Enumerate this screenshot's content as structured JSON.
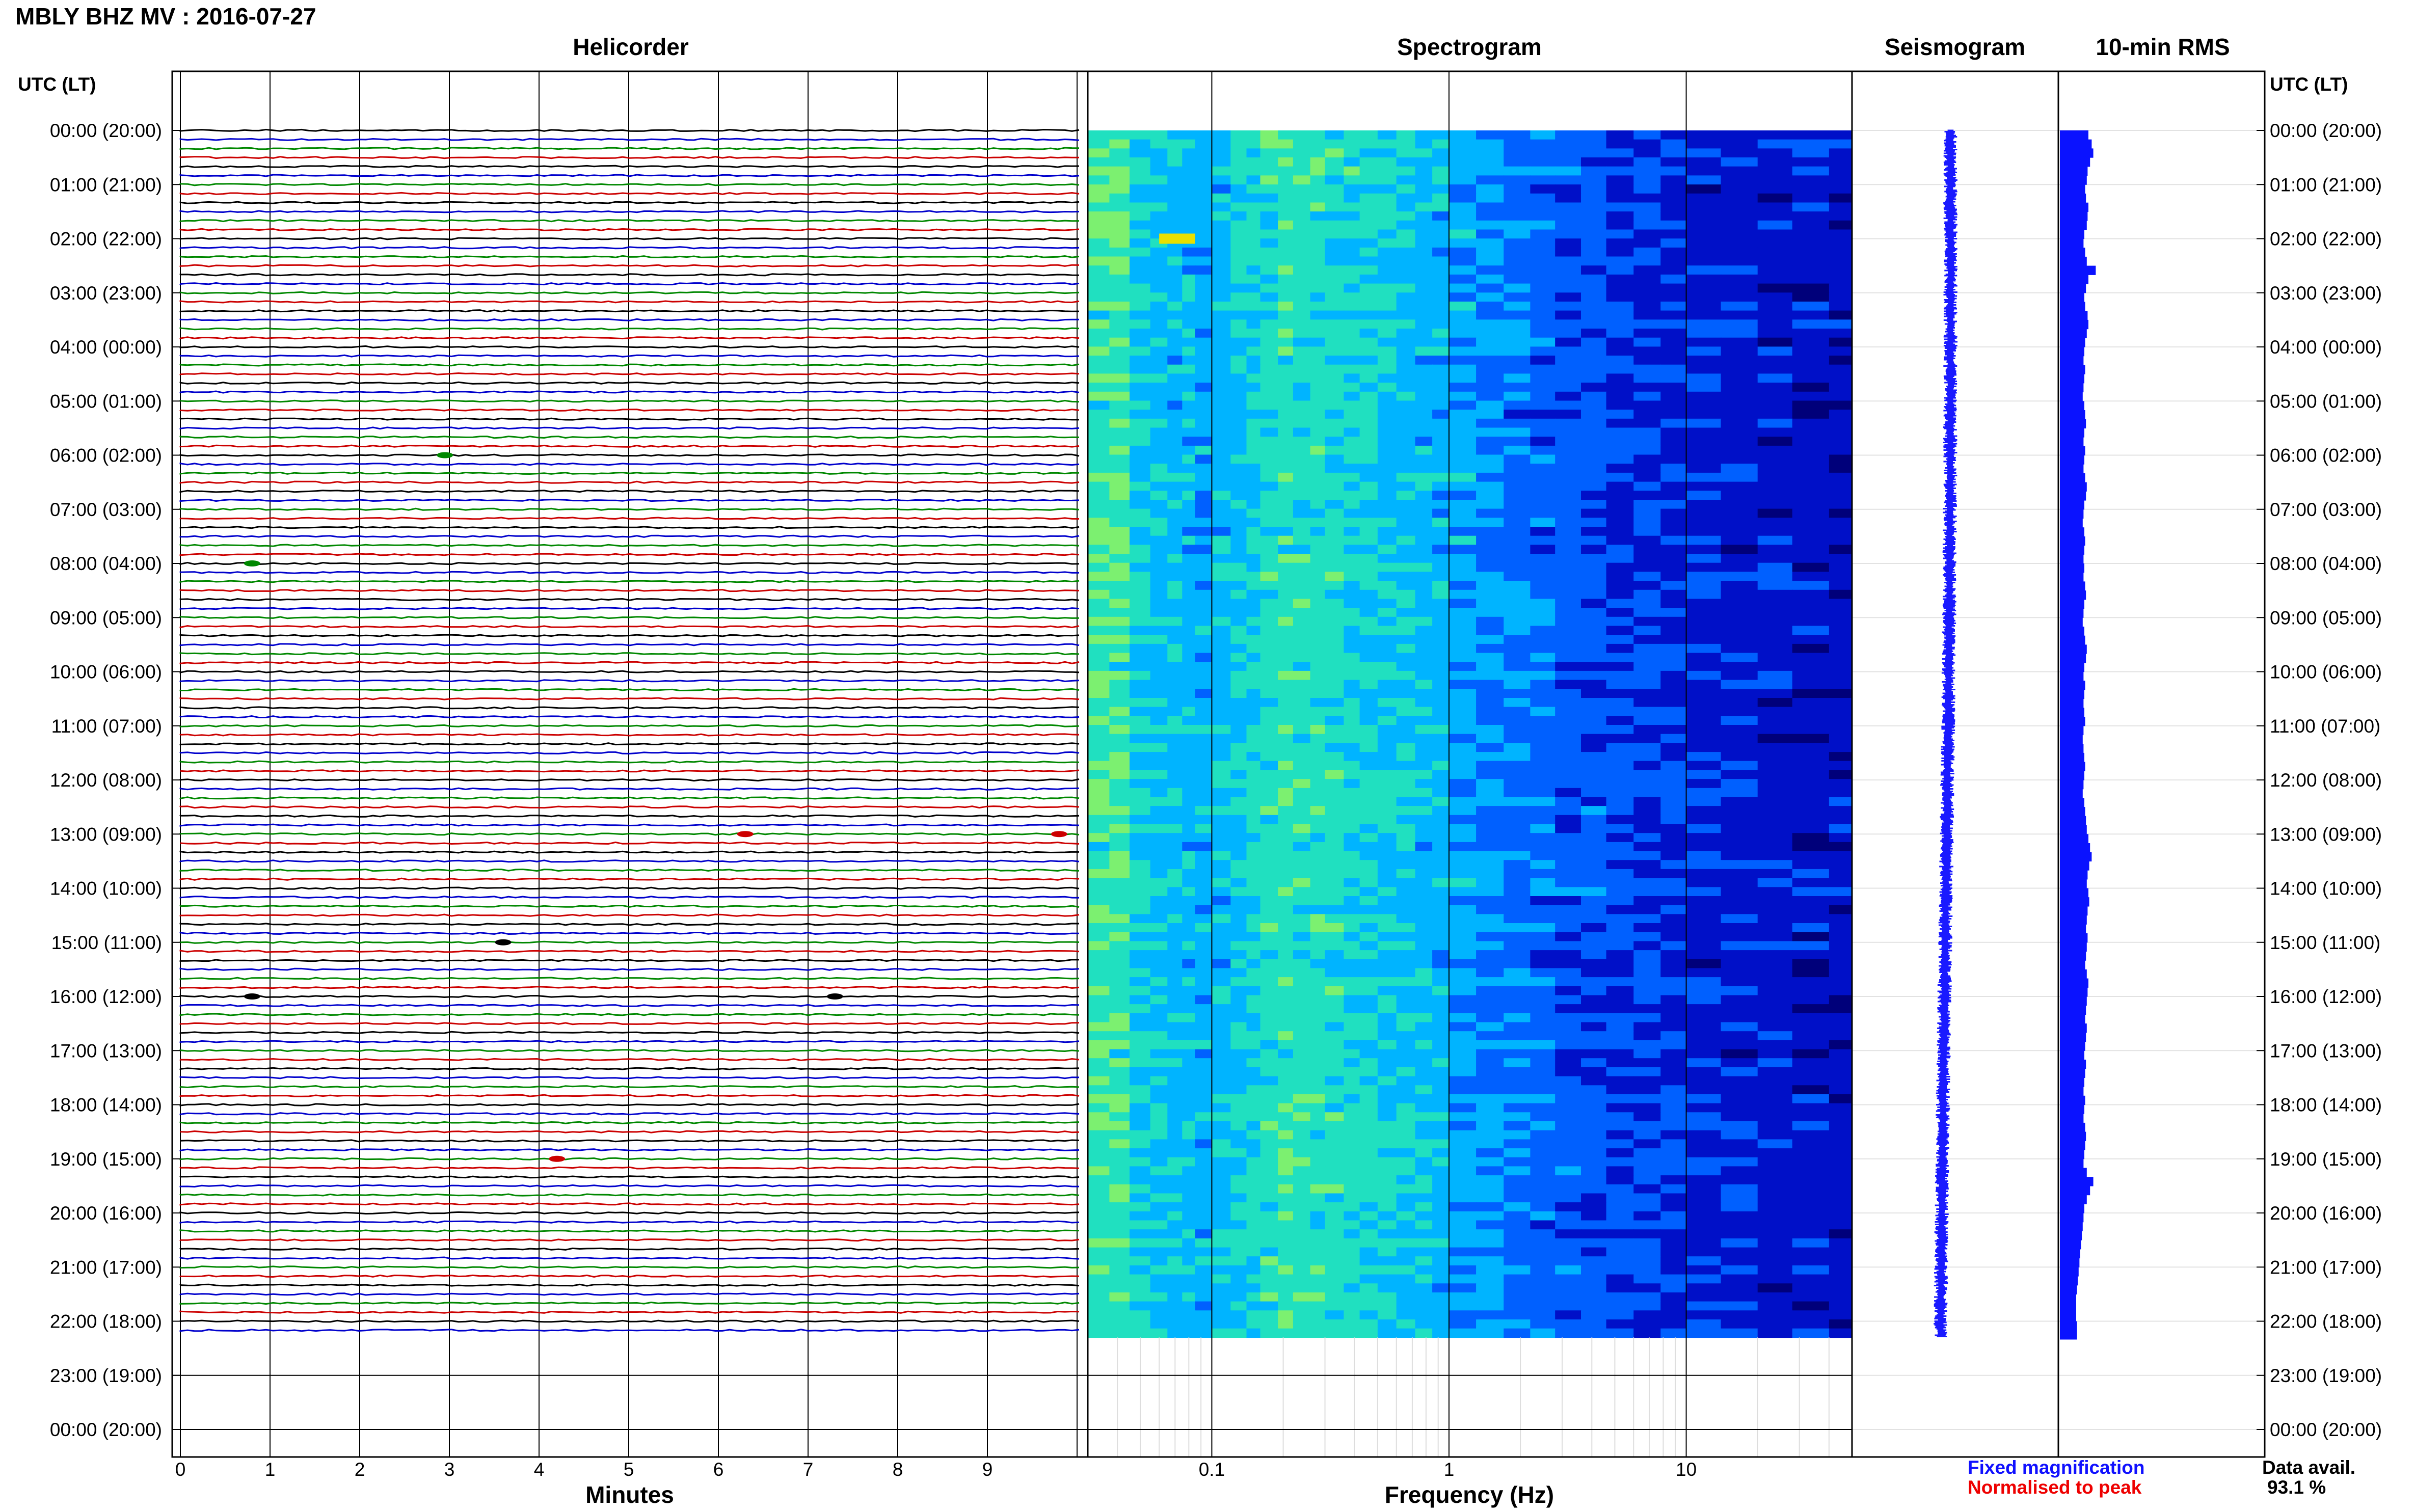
{
  "header": {
    "title": "MBLY BHZ MV : 2016-07-27",
    "utc_label_left": "UTC (LT)",
    "utc_label_right": "UTC (LT)"
  },
  "panels": {
    "helicorder": "Helicorder",
    "spectrogram": "Spectrogram",
    "seismogram": "Seismogram",
    "rms": "10-min RMS"
  },
  "time_labels": [
    "00:00 (20:00)",
    "01:00 (21:00)",
    "02:00 (22:00)",
    "03:00 (23:00)",
    "04:00 (00:00)",
    "05:00 (01:00)",
    "06:00 (02:00)",
    "07:00 (03:00)",
    "08:00 (04:00)",
    "09:00 (05:00)",
    "10:00 (06:00)",
    "11:00 (07:00)",
    "12:00 (08:00)",
    "13:00 (09:00)",
    "14:00 (10:00)",
    "15:00 (11:00)",
    "16:00 (12:00)",
    "17:00 (13:00)",
    "18:00 (14:00)",
    "19:00 (15:00)",
    "20:00 (16:00)",
    "21:00 (17:00)",
    "22:00 (18:00)",
    "23:00 (19:00)",
    "00:00 (20:00)"
  ],
  "axes": {
    "minutes_ticks": [
      "0",
      "1",
      "2",
      "3",
      "4",
      "5",
      "6",
      "7",
      "8",
      "9"
    ],
    "minutes_label": "Minutes",
    "freq_ticks": [
      "0.1",
      "1",
      "10"
    ],
    "freq_label": "Frequency (Hz)"
  },
  "legend": {
    "fixed": "Fixed magnification",
    "normalised": "Normalised to peak",
    "fixed_color": "#1010ff",
    "normalised_color": "#ee0000"
  },
  "availability": {
    "label": "Data avail.",
    "value": "93.1 %"
  },
  "chart_data": {
    "type": "heatmap",
    "station": "MBLY",
    "channel": "BHZ",
    "network": "MV",
    "date": "2016-07-27",
    "helicorder": {
      "trace_colors": [
        "#000000",
        "#0000cc",
        "#008800",
        "#cc0000"
      ],
      "minutes_range": [
        0,
        10
      ],
      "data_hours": 22.3,
      "events": [
        {
          "hour": 6,
          "minute": 2.95,
          "color": "#008800"
        },
        {
          "hour": 8,
          "minute": 0.8,
          "color": "#008800"
        },
        {
          "hour": 13,
          "minute": 6.3,
          "color": "#cc0000"
        },
        {
          "hour": 13,
          "minute": 9.8,
          "color": "#cc0000"
        },
        {
          "hour": 15,
          "minute": 3.6,
          "color": "#000000"
        },
        {
          "hour": 16,
          "minute": 0.8,
          "color": "#000000"
        },
        {
          "hour": 16,
          "minute": 7.3,
          "color": "#000000"
        },
        {
          "hour": 19,
          "minute": 4.2,
          "color": "#cc0000"
        }
      ]
    },
    "spectrogram": {
      "x_scale": "log",
      "xlim": [
        0.03,
        50
      ],
      "colormap": [
        "#00007a",
        "#0010c8",
        "#0060ff",
        "#00b4ff",
        "#20e0c0",
        "#7cf070",
        "#e8e000"
      ]
    },
    "rms": {
      "interval_minutes": 10,
      "values": [
        0.7,
        0.78,
        0.82,
        0.74,
        0.68,
        0.66,
        0.62,
        0.64,
        0.7,
        0.68,
        0.66,
        0.6,
        0.58,
        0.62,
        0.66,
        0.88,
        0.7,
        0.64,
        0.6,
        0.62,
        0.68,
        0.7,
        0.66,
        0.62,
        0.6,
        0.58,
        0.62,
        0.6,
        0.58,
        0.56,
        0.6,
        0.62,
        0.64,
        0.6,
        0.58,
        0.62,
        0.6,
        0.58,
        0.62,
        0.66,
        0.64,
        0.6,
        0.58,
        0.56,
        0.6,
        0.62,
        0.6,
        0.58,
        0.6,
        0.58,
        0.62,
        0.64,
        0.6,
        0.58,
        0.56,
        0.6,
        0.62,
        0.66,
        0.64,
        0.6,
        0.58,
        0.62,
        0.6,
        0.58,
        0.6,
        0.62,
        0.58,
        0.56,
        0.58,
        0.6,
        0.62,
        0.6,
        0.58,
        0.56,
        0.6,
        0.62,
        0.64,
        0.66,
        0.7,
        0.74,
        0.78,
        0.72,
        0.68,
        0.66,
        0.7,
        0.72,
        0.68,
        0.66,
        0.64,
        0.68,
        0.66,
        0.64,
        0.62,
        0.66,
        0.7,
        0.68,
        0.66,
        0.64,
        0.62,
        0.66,
        0.64,
        0.62,
        0.6,
        0.64,
        0.62,
        0.6,
        0.58,
        0.62,
        0.6,
        0.58,
        0.62,
        0.64,
        0.62,
        0.6,
        0.58,
        0.66,
        0.82,
        0.74,
        0.66,
        0.6,
        0.58,
        0.56,
        0.54,
        0.52,
        0.5,
        0.48,
        0.46,
        0.44,
        0.42,
        0.4,
        0.4,
        0.4,
        0.42,
        0.42
      ],
      "availability_percent": 93.1
    }
  }
}
